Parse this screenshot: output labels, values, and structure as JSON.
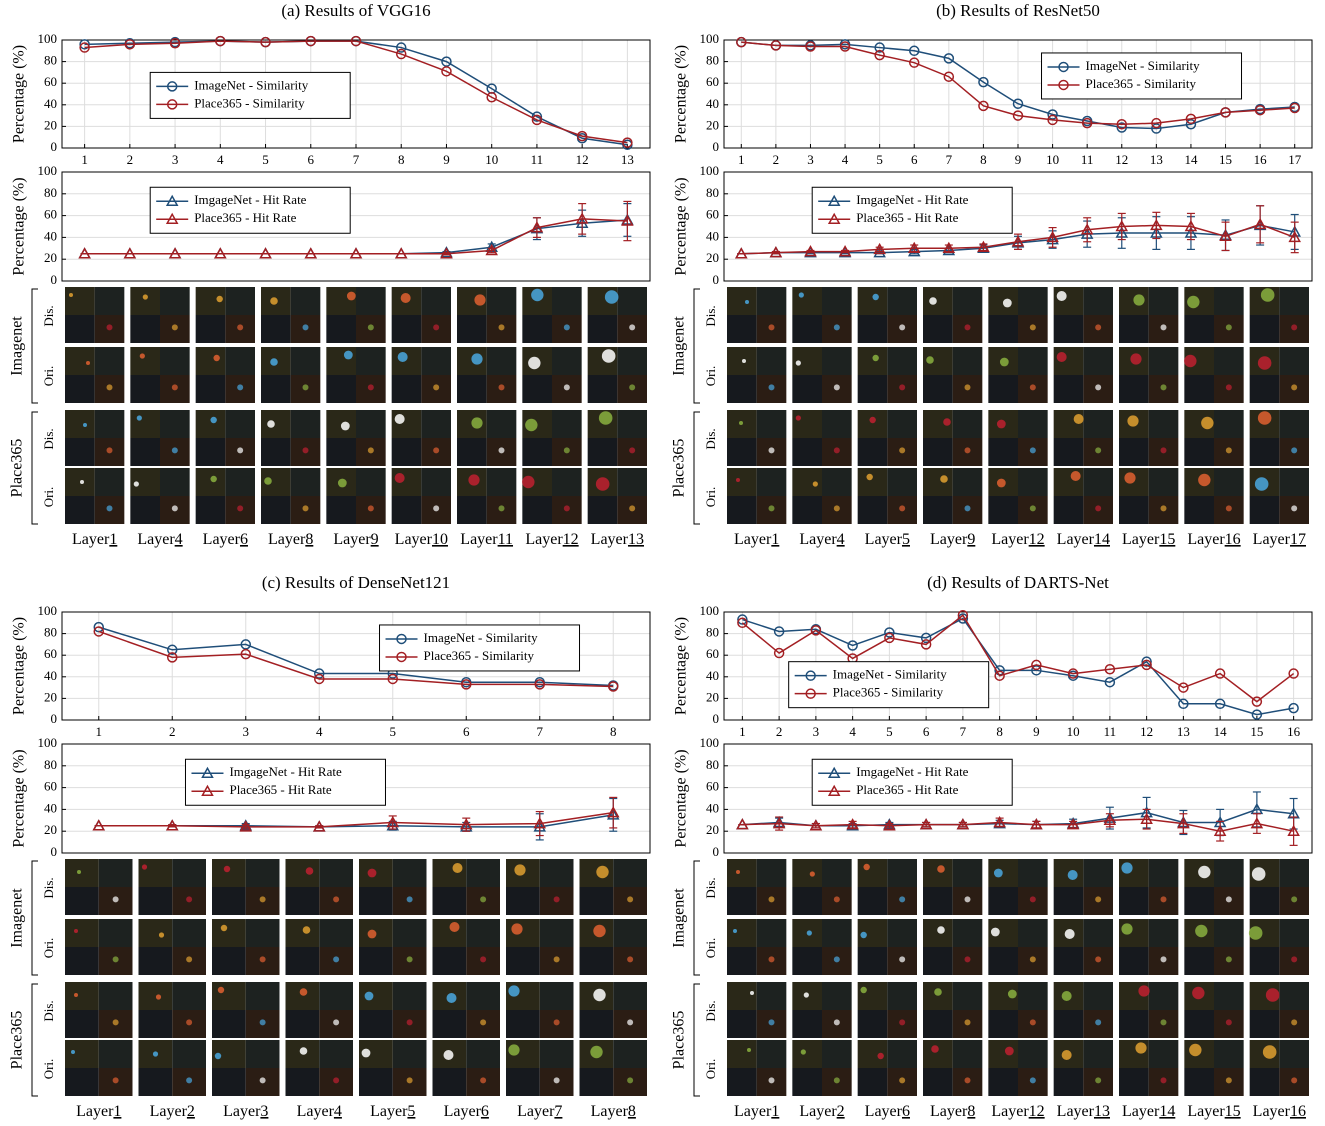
{
  "panels": [
    {
      "title": "(a) Results of VGG16",
      "groups": [
        {
          "label": "Imagenet",
          "rows": [
            "Dis.",
            "Ori."
          ]
        },
        {
          "label": "Place365",
          "rows": [
            "Dis.",
            "Ori."
          ]
        }
      ],
      "layer_prefix": "Layer",
      "layers": [
        "1",
        "4",
        "6",
        "8",
        "9",
        "10",
        "11",
        "12",
        "13"
      ]
    },
    {
      "title": "(b) Results of ResNet50",
      "groups": [
        {
          "label": "Imagenet",
          "rows": [
            "Dis.",
            "Ori."
          ]
        },
        {
          "label": "Place365",
          "rows": [
            "Dis.",
            "Ori."
          ]
        }
      ],
      "layer_prefix": "Layer",
      "layers": [
        "1",
        "4",
        "5",
        "9",
        "12",
        "14",
        "15",
        "16",
        "17"
      ]
    },
    {
      "title": "(c) Results of DenseNet121",
      "groups": [
        {
          "label": "Imagenet",
          "rows": [
            "Dis.",
            "Ori."
          ]
        },
        {
          "label": "Place365",
          "rows": [
            "Dis.",
            "Ori."
          ]
        }
      ],
      "layer_prefix": "Layer",
      "layers": [
        "1",
        "2",
        "3",
        "4",
        "5",
        "6",
        "7",
        "8"
      ]
    },
    {
      "title": "(d) Results of DARTS-Net",
      "groups": [
        {
          "label": "Imagenet",
          "rows": [
            "Dis.",
            "Ori."
          ]
        },
        {
          "label": "Place365",
          "rows": [
            "Dis.",
            "Ori."
          ]
        }
      ],
      "layer_prefix": "Layer",
      "layers": [
        "1",
        "2",
        "6",
        "8",
        "12",
        "13",
        "14",
        "15",
        "16"
      ]
    }
  ],
  "chart_data": [
    {
      "type": "line",
      "ylabel": "Percentage (%)",
      "x": [
        1,
        2,
        3,
        4,
        5,
        6,
        7,
        8,
        9,
        10,
        11,
        12,
        13
      ],
      "xlim": [
        0.5,
        13.5
      ],
      "xticks": [
        1,
        2,
        3,
        4,
        5,
        6,
        7,
        8,
        9,
        10,
        11,
        12,
        13
      ],
      "ylim": [
        0,
        100
      ],
      "yticks": [
        0,
        20,
        40,
        60,
        80,
        100
      ],
      "grid": true,
      "legend": "center left",
      "series": [
        {
          "name": "ImageNet - Similarity",
          "color": "#1f4e79",
          "marker": "circle",
          "values": [
            96,
            97,
            98,
            99,
            98,
            99,
            99,
            93,
            80,
            55,
            29,
            9,
            3
          ]
        },
        {
          "name": "Place365 - Similarity",
          "color": "#a31f23",
          "marker": "circle",
          "values": [
            93,
            96,
            97,
            99,
            98,
            99,
            99,
            87,
            71,
            47,
            26,
            11,
            5
          ]
        }
      ]
    },
    {
      "type": "line",
      "ylabel": "Percentage (%)",
      "x": [
        1,
        2,
        3,
        4,
        5,
        6,
        7,
        8,
        9,
        10,
        11,
        12,
        13
      ],
      "xlim": [
        0.5,
        13.5
      ],
      "ylim": [
        0,
        100
      ],
      "yticks": [
        0,
        20,
        40,
        60,
        80,
        100
      ],
      "grid": true,
      "legend": "upper left",
      "series": [
        {
          "name": "ImgageNet - Hit Rate",
          "color": "#1f4e79",
          "marker": "triangle",
          "values": [
            25,
            25,
            25,
            25,
            25,
            25,
            25,
            25,
            26,
            31,
            48,
            53,
            56
          ],
          "errors": [
            0,
            0,
            0,
            0,
            0,
            0,
            0,
            0,
            1,
            3,
            10,
            12,
            15
          ]
        },
        {
          "name": "Place365 - Hit Rate",
          "color": "#a31f23",
          "marker": "triangle",
          "values": [
            25,
            25,
            25,
            25,
            25,
            25,
            25,
            25,
            25,
            28,
            49,
            57,
            55
          ],
          "errors": [
            0,
            0,
            0,
            0,
            0,
            0,
            0,
            0,
            1,
            2,
            9,
            14,
            18
          ]
        }
      ]
    },
    {
      "type": "line",
      "ylabel": "Percentage (%)",
      "x": [
        1,
        2,
        3,
        4,
        5,
        6,
        7,
        8,
        9,
        10,
        11,
        12,
        13,
        14,
        15,
        16,
        17
      ],
      "xlim": [
        0.5,
        17.5
      ],
      "xticks": [
        1,
        2,
        3,
        4,
        5,
        6,
        7,
        8,
        9,
        10,
        11,
        12,
        13,
        14,
        15,
        16,
        17
      ],
      "ylim": [
        0,
        100
      ],
      "yticks": [
        0,
        20,
        40,
        60,
        80,
        100
      ],
      "grid": true,
      "legend": "upper right",
      "series": [
        {
          "name": "ImageNet - Similarity",
          "color": "#1f4e79",
          "marker": "circle",
          "values": [
            98,
            95,
            95,
            96,
            93,
            90,
            83,
            61,
            41,
            31,
            25,
            19,
            18,
            22,
            33,
            36,
            38
          ]
        },
        {
          "name": "Place365 - Similarity",
          "color": "#a31f23",
          "marker": "circle",
          "values": [
            98,
            95,
            94,
            94,
            86,
            79,
            66,
            39,
            30,
            26,
            23,
            22,
            23,
            27,
            33,
            35,
            37
          ]
        }
      ]
    },
    {
      "type": "line",
      "ylabel": "Percentage (%)",
      "x": [
        1,
        2,
        3,
        4,
        5,
        6,
        7,
        8,
        9,
        10,
        11,
        12,
        13,
        14,
        15,
        16,
        17
      ],
      "xlim": [
        0.5,
        17.5
      ],
      "ylim": [
        0,
        100
      ],
      "yticks": [
        0,
        20,
        40,
        60,
        80,
        100
      ],
      "grid": true,
      "legend": "upper left",
      "series": [
        {
          "name": "ImgageNet - Hit Rate",
          "color": "#1f4e79",
          "marker": "triangle",
          "values": [
            25,
            26,
            26,
            26,
            26,
            27,
            28,
            30,
            35,
            38,
            43,
            44,
            44,
            44,
            42,
            51,
            45
          ],
          "errors": [
            0,
            1,
            1,
            1,
            1,
            2,
            2,
            3,
            6,
            8,
            12,
            14,
            15,
            15,
            14,
            18,
            16
          ]
        },
        {
          "name": "Place365 - Hit Rate",
          "color": "#a31f23",
          "marker": "triangle",
          "values": [
            25,
            26,
            27,
            27,
            29,
            30,
            30,
            31,
            36,
            40,
            47,
            50,
            51,
            50,
            41,
            52,
            40
          ],
          "errors": [
            0,
            1,
            1,
            1,
            2,
            3,
            3,
            3,
            7,
            9,
            11,
            12,
            12,
            12,
            13,
            17,
            14
          ]
        }
      ]
    },
    {
      "type": "line",
      "ylabel": "Percentage (%)",
      "x": [
        1,
        2,
        3,
        4,
        5,
        6,
        7,
        8
      ],
      "xlim": [
        0.5,
        8.5
      ],
      "xticks": [
        1,
        2,
        3,
        4,
        5,
        6,
        7,
        8
      ],
      "ylim": [
        0,
        100
      ],
      "yticks": [
        0,
        20,
        40,
        60,
        80,
        100
      ],
      "grid": true,
      "legend": "upper right",
      "series": [
        {
          "name": "ImageNet - Similarity",
          "color": "#1f4e79",
          "marker": "circle",
          "values": [
            86,
            65,
            70,
            43,
            43,
            35,
            35,
            32
          ]
        },
        {
          "name": "Place365 - Similarity",
          "color": "#a31f23",
          "marker": "circle",
          "values": [
            82,
            58,
            61,
            38,
            38,
            33,
            33,
            31
          ]
        }
      ]
    },
    {
      "type": "line",
      "ylabel": "Percentage (%)",
      "x": [
        1,
        2,
        3,
        4,
        5,
        6,
        7,
        8
      ],
      "xlim": [
        0.5,
        8.5
      ],
      "ylim": [
        0,
        100
      ],
      "yticks": [
        0,
        20,
        40,
        60,
        80,
        100
      ],
      "grid": true,
      "legend": "upper center",
      "series": [
        {
          "name": "ImgageNet - Hit Rate",
          "color": "#1f4e79",
          "marker": "triangle",
          "values": [
            25,
            25,
            25,
            24,
            25,
            24,
            24,
            35
          ],
          "errors": [
            0,
            1,
            2,
            1,
            4,
            4,
            12,
            15
          ]
        },
        {
          "name": "Place365 - Hit Rate",
          "color": "#a31f23",
          "marker": "triangle",
          "values": [
            25,
            25,
            24,
            24,
            28,
            26,
            27,
            37
          ],
          "errors": [
            0,
            1,
            2,
            1,
            6,
            6,
            11,
            14
          ]
        }
      ]
    },
    {
      "type": "line",
      "ylabel": "Percentage (%)",
      "x": [
        1,
        2,
        3,
        4,
        5,
        6,
        7,
        8,
        9,
        10,
        11,
        12,
        13,
        14,
        15,
        16
      ],
      "xlim": [
        0.5,
        16.5
      ],
      "xticks": [
        1,
        2,
        3,
        4,
        5,
        6,
        7,
        8,
        9,
        10,
        11,
        12,
        13,
        14,
        15,
        16
      ],
      "ylim": [
        0,
        100
      ],
      "yticks": [
        0,
        20,
        40,
        60,
        80,
        100
      ],
      "grid": true,
      "legend": "lower left",
      "series": [
        {
          "name": "ImageNet - Similarity",
          "color": "#1f4e79",
          "marker": "circle",
          "values": [
            93,
            82,
            84,
            69,
            81,
            76,
            94,
            46,
            46,
            41,
            35,
            54,
            15,
            15,
            5,
            11
          ]
        },
        {
          "name": "Place365 - Similarity",
          "color": "#a31f23",
          "marker": "circle",
          "values": [
            90,
            62,
            83,
            57,
            76,
            70,
            97,
            41,
            51,
            43,
            47,
            51,
            30,
            43,
            17,
            43
          ]
        }
      ]
    },
    {
      "type": "line",
      "ylabel": "Percentage (%)",
      "x": [
        1,
        2,
        3,
        4,
        5,
        6,
        7,
        8,
        9,
        10,
        11,
        12,
        13,
        14,
        15,
        16
      ],
      "xlim": [
        0.5,
        16.5
      ],
      "ylim": [
        0,
        100
      ],
      "yticks": [
        0,
        20,
        40,
        60,
        80,
        100
      ],
      "grid": true,
      "legend": "upper left",
      "series": [
        {
          "name": "ImgageNet - Hit Rate",
          "color": "#1f4e79",
          "marker": "triangle",
          "values": [
            26,
            28,
            25,
            25,
            26,
            26,
            26,
            27,
            26,
            27,
            32,
            37,
            28,
            28,
            40,
            36
          ],
          "errors": [
            0,
            4,
            2,
            2,
            2,
            2,
            2,
            3,
            3,
            4,
            10,
            14,
            11,
            12,
            16,
            14
          ]
        },
        {
          "name": "Place365 - Hit Rate",
          "color": "#a31f23",
          "marker": "triangle",
          "values": [
            26,
            27,
            25,
            26,
            25,
            26,
            26,
            28,
            26,
            26,
            30,
            31,
            27,
            20,
            27,
            20
          ],
          "errors": [
            0,
            6,
            2,
            3,
            2,
            2,
            2,
            4,
            3,
            3,
            6,
            9,
            9,
            9,
            9,
            13
          ]
        }
      ]
    }
  ]
}
